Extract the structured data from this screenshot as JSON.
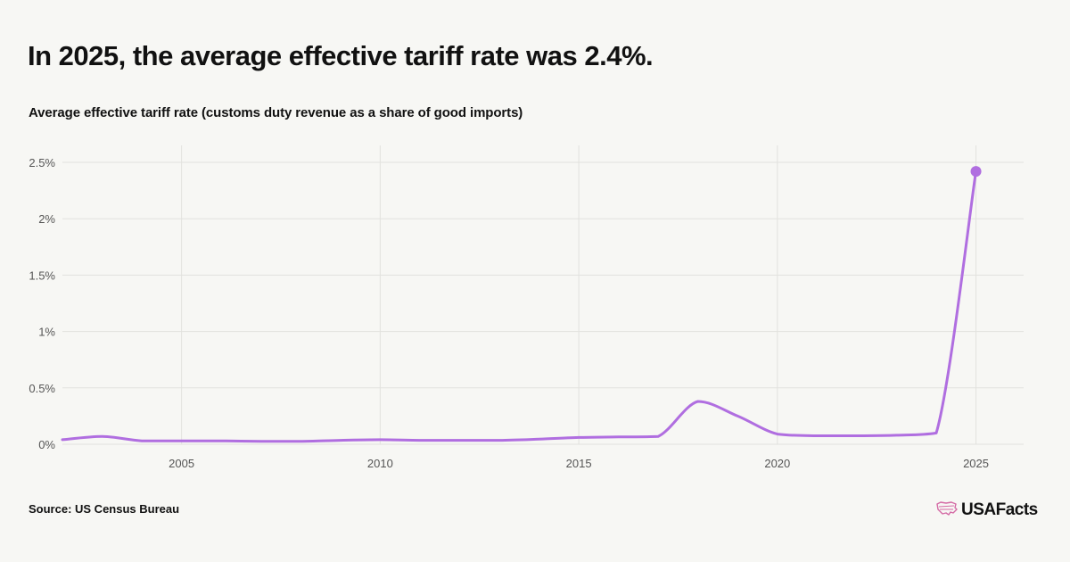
{
  "page": {
    "title": "In 2025, the average effective tariff rate was 2.4%.",
    "source": "Source: US Census Bureau",
    "brand": "USAFacts",
    "brand_icon": "us-map-icon"
  },
  "colors": {
    "background": "#f7f7f4",
    "line": "#b06ee0",
    "grid": "#e2e2de",
    "axis_text": "#555555"
  },
  "chart_data": {
    "type": "line",
    "title": "In 2025, the average effective tariff rate was 2.4%.",
    "subtitle": "Average effective tariff rate (customs duty revenue as a share of good imports)",
    "xlabel": "",
    "ylabel": "",
    "xlim": [
      2002,
      2026.2
    ],
    "ylim": [
      0,
      2.5
    ],
    "x_ticks": [
      2005,
      2010,
      2015,
      2020,
      2025
    ],
    "y_ticks": [
      0,
      0.5,
      1,
      1.5,
      2,
      2.5
    ],
    "y_tick_labels": [
      "0%",
      "0.5%",
      "1%",
      "1.5%",
      "2%",
      "2.5%"
    ],
    "grid": true,
    "legend": "none",
    "series": [
      {
        "x": [
          2002,
          2003,
          2004,
          2005,
          2006,
          2007,
          2008,
          2009,
          2010,
          2011,
          2012,
          2013,
          2014,
          2015,
          2016,
          2017,
          2018,
          2019,
          2020,
          2021,
          2022,
          2023,
          2024,
          2025
        ],
        "values": [
          0.04,
          0.07,
          0.03,
          0.03,
          0.03,
          0.025,
          0.025,
          0.035,
          0.04,
          0.035,
          0.035,
          0.035,
          0.045,
          0.06,
          0.065,
          0.07,
          0.38,
          0.25,
          0.09,
          0.075,
          0.075,
          0.08,
          0.1,
          2.42
        ],
        "highlight_last": true
      }
    ]
  }
}
